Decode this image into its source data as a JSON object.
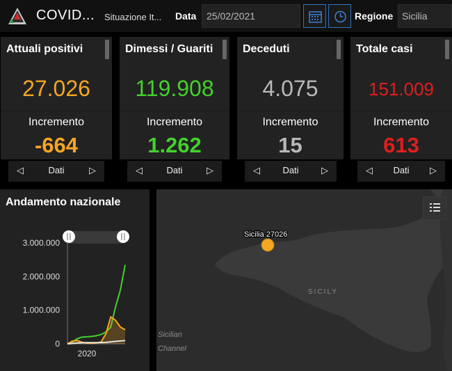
{
  "header": {
    "app_title": "COVID...",
    "app_subtitle": "Situazione It...",
    "date_label": "Data",
    "date_value": "25/02/2021",
    "region_label": "Regione",
    "region_value": "Sicilia",
    "icons": [
      "calendar-icon",
      "clock-icon"
    ]
  },
  "cards": [
    {
      "title": "Attuali positivi",
      "value": "27.026",
      "incr_label": "Incremento",
      "incr_value": "-664",
      "color": "#f5a623",
      "pager_label": "Dati"
    },
    {
      "title": "Dimessi / Guariti",
      "value": "119.908",
      "incr_label": "Incremento",
      "incr_value": "1.262",
      "color": "#43d12b",
      "pager_label": "Dati"
    },
    {
      "title": "Deceduti",
      "value": "4.075",
      "incr_label": "Incremento",
      "incr_value": "15",
      "color": "#b9b9b9",
      "pager_label": "Dati"
    },
    {
      "title": "Totale casi",
      "value": "151.009",
      "incr_label": "Incremento",
      "incr_value": "613",
      "color": "#e01e1e",
      "pager_label": "Dati"
    }
  ],
  "chart_panel": {
    "title": "Andamento nazionale"
  },
  "chart_data": {
    "type": "line",
    "title": "",
    "xlabel": "",
    "ylabel": "",
    "x_ticks": [
      "2020"
    ],
    "y_ticks": [
      "0",
      "1.000.000",
      "2.000.000",
      "3.000.000"
    ],
    "ylim": [
      0,
      3000000
    ],
    "x": [
      0,
      1,
      2,
      3,
      4,
      5,
      6,
      7,
      8,
      9,
      10,
      11,
      12
    ],
    "series": [
      {
        "color": "#43d12b",
        "values": [
          0,
          50000,
          150000,
          200000,
          210000,
          220000,
          240000,
          280000,
          350000,
          500000,
          1100000,
          1600000,
          2350000
        ]
      },
      {
        "color": "#f5a623",
        "values": [
          0,
          80000,
          100000,
          50000,
          20000,
          15000,
          25000,
          60000,
          300000,
          800000,
          700000,
          500000,
          420000
        ]
      },
      {
        "color": "#e6e6e6",
        "values": [
          0,
          10000,
          25000,
          33000,
          35000,
          35000,
          36000,
          38000,
          45000,
          60000,
          75000,
          85000,
          97000
        ]
      }
    ],
    "slider_handles": [
      "left",
      "right"
    ]
  },
  "map": {
    "marker_label": "Sicilia 27026",
    "labels": [
      "SICILY",
      "Sicilian",
      "Channel"
    ],
    "button_icon": "list-icon"
  }
}
